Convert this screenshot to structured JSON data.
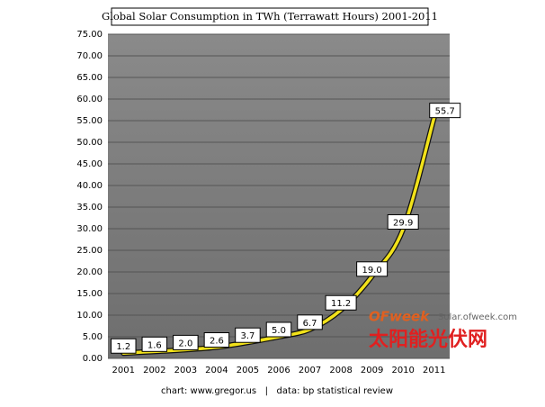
{
  "chart_data": {
    "type": "line",
    "title": "Global Solar Consumption in TWh (Terrawatt Hours) 2001-2011",
    "categories": [
      "2001",
      "2002",
      "2003",
      "2004",
      "2005",
      "2006",
      "2007",
      "2008",
      "2009",
      "2010",
      "2011"
    ],
    "values": [
      1.2,
      1.6,
      2.0,
      2.6,
      3.7,
      5.0,
      6.7,
      11.2,
      19.0,
      29.9,
      55.7
    ],
    "value_labels": [
      "1.2",
      "1.6",
      "2.0",
      "2.6",
      "3.7",
      "5.0",
      "6.7",
      "11.2",
      "19.0",
      "29.9",
      "55.7"
    ],
    "color": "#f2e21a",
    "ylim": [
      0,
      75
    ],
    "yticks": [
      {
        "value": 0,
        "label": "0.00"
      },
      {
        "value": 5,
        "label": "5.00"
      },
      {
        "value": 10,
        "label": "10.00"
      },
      {
        "value": 15,
        "label": "15.00"
      },
      {
        "value": 20,
        "label": "20.00"
      },
      {
        "value": 25,
        "label": "25.00"
      },
      {
        "value": 30,
        "label": "30.00"
      },
      {
        "value": 35,
        "label": "35.00"
      },
      {
        "value": 40,
        "label": "40.00"
      },
      {
        "value": 45,
        "label": "45.00"
      },
      {
        "value": 50,
        "label": "50.00"
      },
      {
        "value": 55,
        "label": "55.00"
      },
      {
        "value": 60,
        "label": "60.00"
      },
      {
        "value": 65,
        "label": "65.00"
      },
      {
        "value": 70,
        "label": "70.00"
      },
      {
        "value": 75,
        "label": "75.00"
      }
    ],
    "grid": true,
    "footer": "chart: www.gregor.us   |   data: bp statistical review",
    "watermark": {
      "brand": "OFweek",
      "url": "Solar.ofweek.com",
      "cn": "太阳能光伏网"
    }
  }
}
